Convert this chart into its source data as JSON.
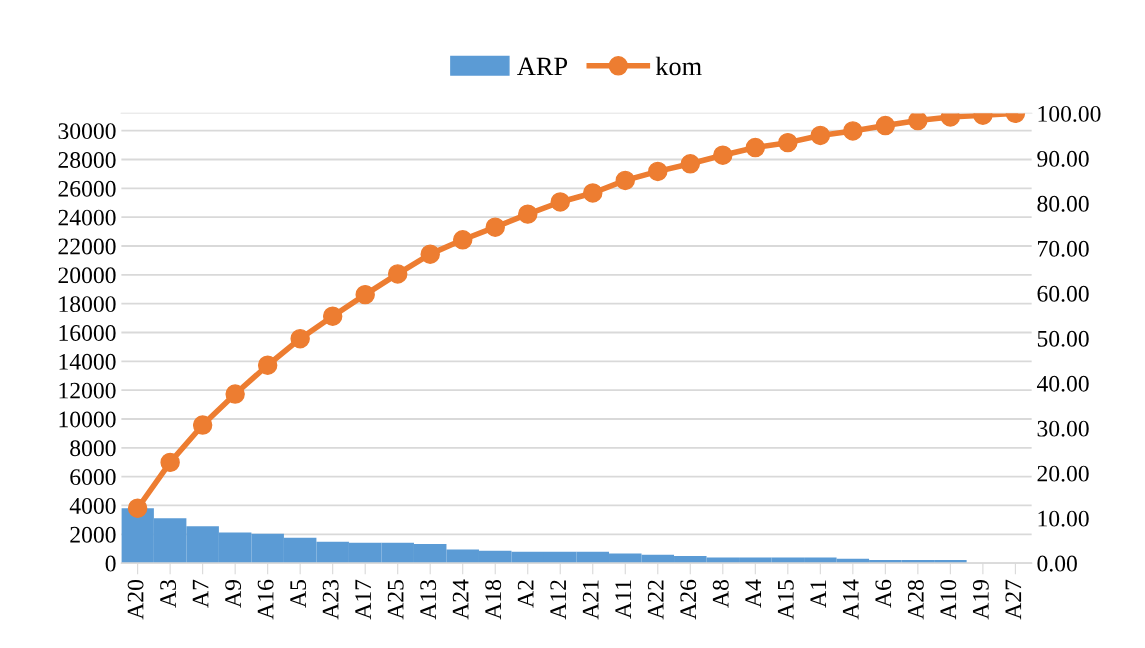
{
  "chart_data": {
    "type": "bar",
    "categories": [
      "A20",
      "A3",
      "A7",
      "A9",
      "A16",
      "A5",
      "A23",
      "A17",
      "A25",
      "A13",
      "A24",
      "A18",
      "A2",
      "A12",
      "A21",
      "A11",
      "A22",
      "A26",
      "A8",
      "A4",
      "A15",
      "A1",
      "A14",
      "A6",
      "A28",
      "A10",
      "A19",
      "A27"
    ],
    "series": [
      {
        "name": "ARP",
        "color": "#5b9bd5",
        "values": [
          3810,
          3120,
          2560,
          2130,
          2030,
          1760,
          1480,
          1410,
          1410,
          1320,
          950,
          850,
          780,
          780,
          780,
          670,
          580,
          490,
          390,
          390,
          390,
          390,
          300,
          210,
          210,
          210,
          0,
          0
        ]
      },
      {
        "name": "kom",
        "type": "line",
        "axis": "y2",
        "color": "#ed7d31",
        "marker": "circle",
        "values": [
          12.2,
          22.4,
          30.7,
          37.6,
          44.0,
          49.9,
          54.9,
          59.7,
          64.3,
          68.7,
          71.9,
          74.7,
          77.6,
          80.3,
          82.3,
          85.1,
          87.1,
          88.8,
          90.7,
          92.4,
          93.5,
          95.1,
          96.1,
          97.3,
          98.4,
          99.2,
          99.6,
          100.0
        ]
      }
    ],
    "ylim": [
      0,
      31200
    ],
    "yticks": [
      0,
      2000,
      4000,
      6000,
      8000,
      10000,
      12000,
      14000,
      16000,
      18000,
      20000,
      22000,
      24000,
      26000,
      28000,
      30000
    ],
    "y2lim": [
      0,
      100
    ],
    "y2ticks": [
      {
        "value": 0,
        "label": "0.00"
      },
      {
        "value": 10,
        "label": "10.00"
      },
      {
        "value": 20,
        "label": "20.00"
      },
      {
        "value": 30,
        "label": "30.00"
      },
      {
        "value": 40,
        "label": "40.00"
      },
      {
        "value": 50,
        "label": "50.00"
      },
      {
        "value": 60,
        "label": "60.00"
      },
      {
        "value": 70,
        "label": "70.00"
      },
      {
        "value": 80,
        "label": "80.00"
      },
      {
        "value": 90,
        "label": "90.00"
      },
      {
        "value": 100,
        "label": "100.00"
      }
    ],
    "grid": "y",
    "legend": "top"
  }
}
